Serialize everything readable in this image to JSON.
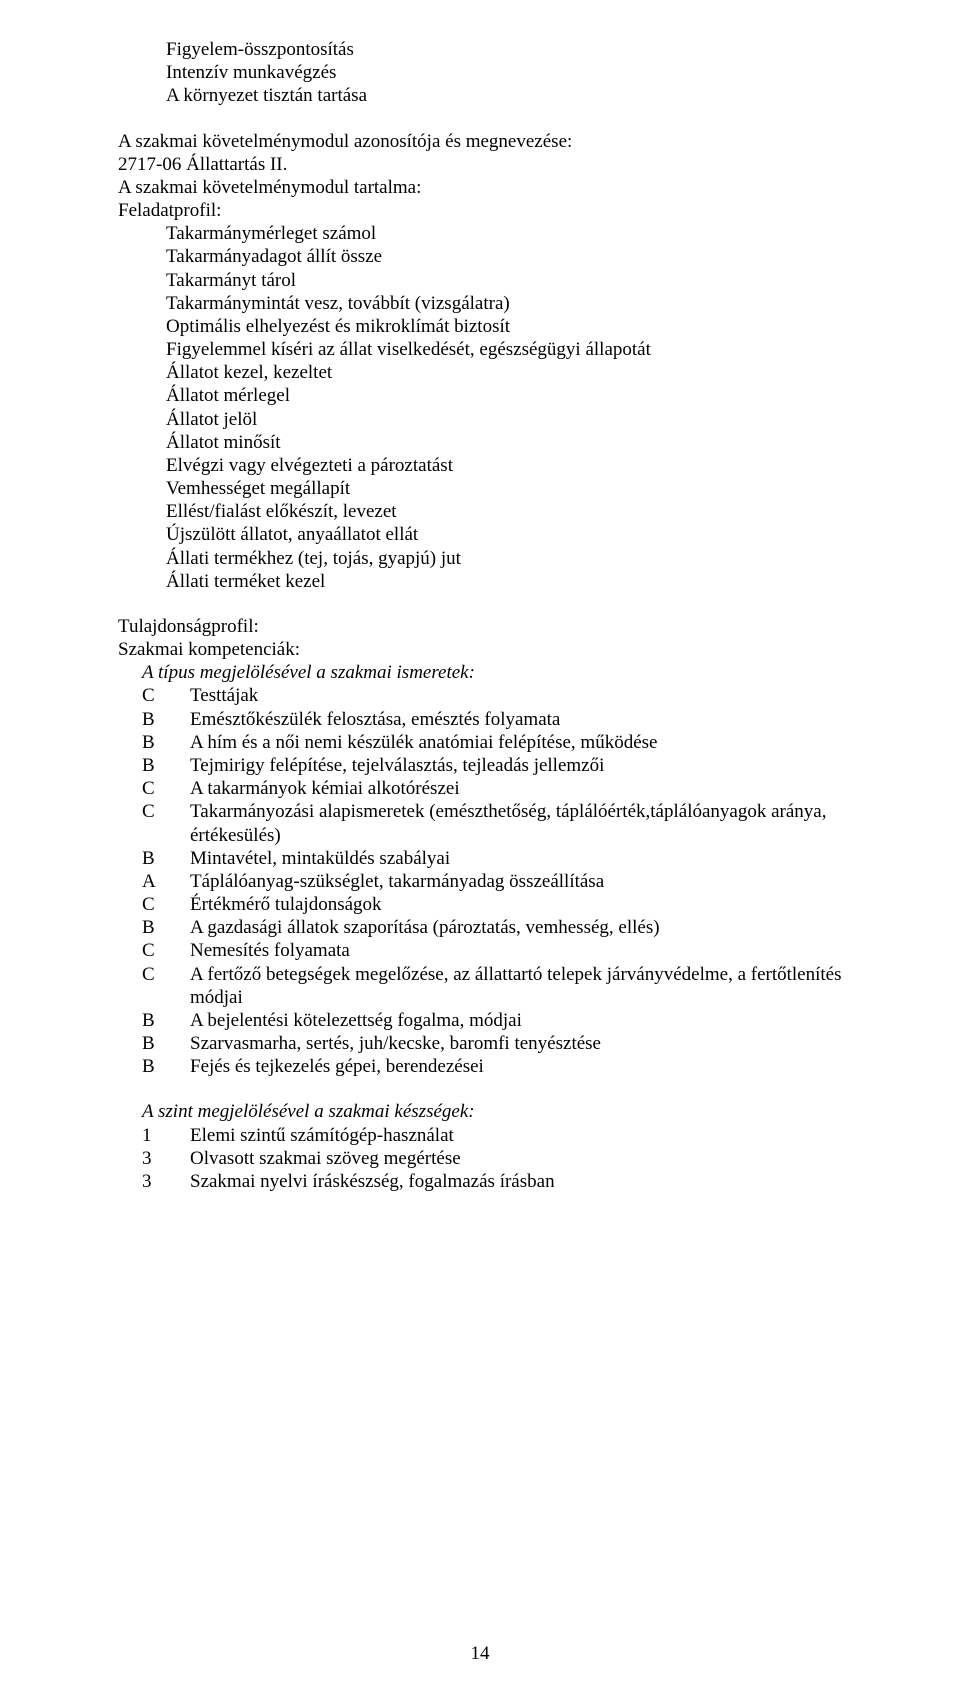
{
  "fontsize_body": 19,
  "color_text": "#000000",
  "color_bg": "#ffffff",
  "page_number": "14",
  "intro_block": [
    "Figyelem-összpontosítás",
    "Intenzív munkavégzés",
    "A környezet tisztán tartása"
  ],
  "module_id_label": "A szakmai követelménymodul azonosítója és megnevezése:",
  "module_id": "2717-06  Állattartás II.",
  "module_content_label": "A szakmai követelménymodul tartalma:",
  "feladatprofil_label": "Feladatprofil:",
  "feladat_items": [
    "Takarmánymérleget számol",
    "Takarmányadagot állít össze",
    "Takarmányt tárol",
    "Takarmánymintát vesz, továbbít (vizsgálatra)",
    "Optimális elhelyezést és mikroklímát biztosít",
    "Figyelemmel kíséri az állat viselkedését, egészségügyi állapotát",
    "Állatot kezel, kezeltet",
    "Állatot mérlegel",
    "Állatot jelöl",
    "Állatot minősít",
    "Elvégzi vagy elvégezteti a pároztatást",
    "Vemhességet megállapít",
    "Ellést/fialást előkészít, levezet",
    "Újszülött állatot, anyaállatot ellát",
    "Állati termékhez (tej, tojás, gyapjú) jut",
    "Állati terméket kezel"
  ],
  "tulajdonsagprofil_label": "Tulajdonságprofil:",
  "kompetenciak_label": "Szakmai kompetenciák:",
  "ismeretek_heading": "A típus megjelölésével a szakmai ismeretek:",
  "ismeretek": [
    {
      "k": "C",
      "v": "Testtájak"
    },
    {
      "k": "B",
      "v": "Emésztőkészülék felosztása, emésztés folyamata"
    },
    {
      "k": "B",
      "v": "A hím és a női nemi készülék anatómiai felépítése, működése"
    },
    {
      "k": "B",
      "v": "Tejmirigy felépítése, tejelválasztás, tejleadás jellemzői"
    },
    {
      "k": "C",
      "v": "A takarmányok kémiai alkotórészei"
    },
    {
      "k": "C",
      "v": "Takarmányozási alapismeretek (emészthetőség, táplálóérték,táplálóanyagok aránya, értékesülés)"
    },
    {
      "k": "B",
      "v": "Mintavétel, mintaküldés szabályai"
    },
    {
      "k": "A",
      "v": "Táplálóanyag-szükséglet, takarmányadag összeállítása"
    },
    {
      "k": "C",
      "v": "Értékmérő tulajdonságok"
    },
    {
      "k": "B",
      "v": "A gazdasági állatok szaporítása (pároztatás, vemhesség, ellés)"
    },
    {
      "k": "C",
      "v": "Nemesítés folyamata"
    },
    {
      "k": "C",
      "v": "A fertőző betegségek megelőzése, az állattartó telepek járványvédelme, a fertőtlenítés módjai"
    },
    {
      "k": "B",
      "v": "A bejelentési kötelezettség fogalma, módjai"
    },
    {
      "k": "B",
      "v": "Szarvasmarha, sertés, juh/kecske, baromfi tenyésztése"
    },
    {
      "k": "B",
      "v": "Fejés és tejkezelés gépei, berendezései"
    }
  ],
  "keszsegek_heading": "A szint megjelölésével a szakmai készségek:",
  "keszsegek": [
    {
      "k": "1",
      "v": "Elemi szintű számítógép-használat"
    },
    {
      "k": "3",
      "v": "Olvasott szakmai szöveg megértése"
    },
    {
      "k": "3",
      "v": "Szakmai nyelvi íráskészség, fogalmazás írásban"
    }
  ]
}
